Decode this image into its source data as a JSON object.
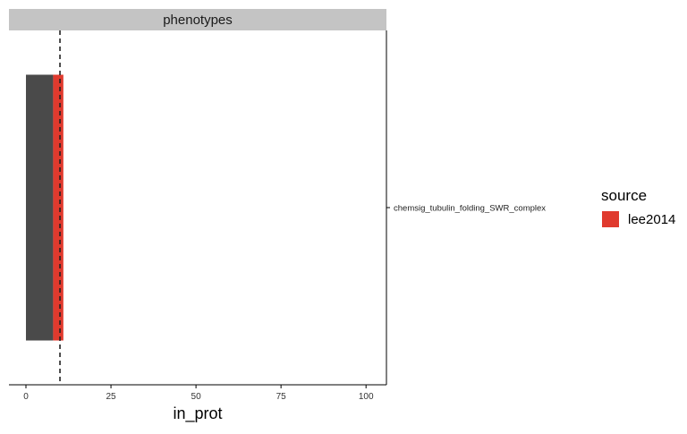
{
  "chart_data": {
    "type": "bar",
    "orientation": "horizontal",
    "stacked": true,
    "facet_title": "phenotypes",
    "categories": [
      "chemsig_tubulin_folding_SWR_complex"
    ],
    "series": [
      {
        "name": "",
        "color": "#4a4a4a",
        "values": [
          8
        ]
      },
      {
        "name": "lee2014",
        "color": "#e03a2e",
        "values": [
          3
        ]
      }
    ],
    "reference_line": {
      "x": 10,
      "style": "dashed",
      "color": "#222222"
    },
    "xlabel": "in_prot",
    "ylabel": "",
    "xlim": [
      -5,
      106
    ],
    "xticks": [
      0,
      25,
      50,
      75,
      100
    ],
    "y_axis_side": "right",
    "grid": false,
    "legend": {
      "title": "source",
      "position": "right",
      "entries": [
        {
          "label": "lee2014",
          "color": "#e03a2e"
        }
      ]
    }
  }
}
